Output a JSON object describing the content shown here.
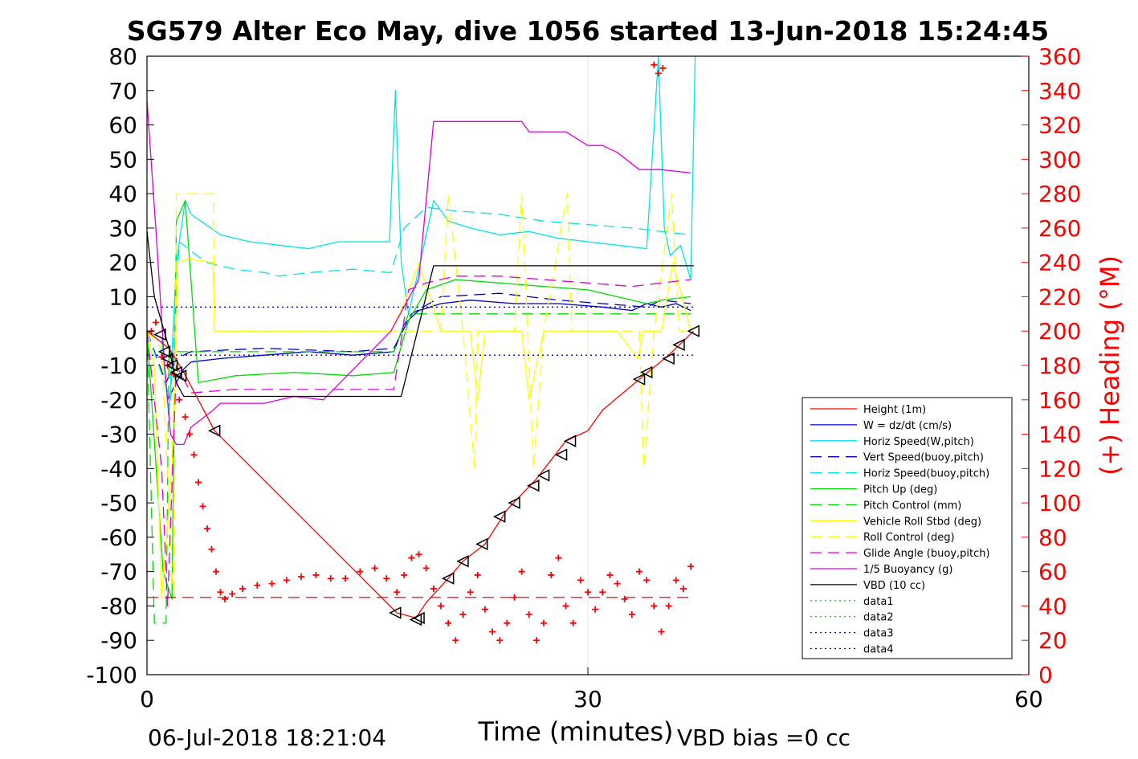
{
  "chart_data": {
    "type": "line",
    "title": "SG579 Alter Eco May, dive 1056 started 13-Jun-2018 15:24:45",
    "xlabel": "Time (minutes)",
    "ylabel_right": "(+) Heading (°M)",
    "xlim": [
      0,
      60
    ],
    "ylim": [
      -100,
      80
    ],
    "ylim_right": [
      0,
      360
    ],
    "xticks": [
      "0",
      "30",
      "60"
    ],
    "yticks": [
      "80",
      "70",
      "60",
      "50",
      "40",
      "30",
      "20",
      "10",
      "0",
      "-10",
      "-20",
      "-30",
      "-40",
      "-50",
      "-60",
      "-70",
      "-80",
      "-90",
      "-100"
    ],
    "yticks_right": [
      "360",
      "340",
      "320",
      "300",
      "280",
      "260",
      "240",
      "220",
      "200",
      "180",
      "160",
      "140",
      "120",
      "100",
      "80",
      "60",
      "40",
      "20",
      "0"
    ],
    "grid": "x-only",
    "legend_position": "bottom-right",
    "footer_left": "06-Jul-2018 18:21:04",
    "footer_right": "VBD bias =0 cc",
    "colors": {
      "red": "#ff0000",
      "blue": "#0000cc",
      "cyan": "#00e5e5",
      "green": "#00dd00",
      "yellow": "#ffff00",
      "magenta": "#dd00dd",
      "black": "#000000"
    },
    "series": [
      {
        "name": "Height (1m)",
        "color": "#ff0000",
        "style": "solid",
        "x": [
          0,
          1.5,
          2.5,
          4.6,
          17,
          18.3,
          19,
          20.5,
          21.5,
          23,
          24.5,
          26.5,
          28.5,
          30,
          31,
          33.5,
          35.5,
          37.2
        ],
        "y": [
          0,
          -5,
          -12,
          -29,
          -82,
          -83.5,
          -79,
          -72,
          -67,
          -62,
          -52,
          -43,
          -32,
          -29,
          -23,
          -14,
          -7,
          0
        ]
      },
      {
        "name": "W = dz/dt (cm/s)",
        "color": "#0000cc",
        "style": "solid",
        "x": [
          0,
          1.0,
          1.4,
          2.0,
          2.5,
          3,
          5,
          8,
          11,
          14,
          16.8,
          17.5,
          18.5,
          20,
          22,
          25,
          28,
          31,
          33,
          34,
          35,
          36,
          37
        ],
        "y": [
          0,
          -2,
          -20,
          -15,
          -11,
          -9,
          -8,
          -7,
          -6,
          -7,
          -6,
          2,
          6,
          8,
          9,
          8,
          8,
          7,
          6,
          8,
          7,
          8,
          6
        ]
      },
      {
        "name": "Horiz Speed(W,pitch)",
        "color": "#00e5e5",
        "style": "solid",
        "x": [
          0,
          1.0,
          1.5,
          2.0,
          2.6,
          3.0,
          4,
          5,
          7,
          9,
          11,
          13,
          15,
          16.5,
          16.9,
          17.3,
          17.8,
          18.6,
          19.5,
          20.5,
          22,
          24,
          26,
          28,
          30,
          32,
          34,
          34.8,
          35.2,
          35.6,
          36.3,
          37,
          37.3
        ],
        "y": [
          0,
          -2,
          -25,
          20,
          38,
          34,
          31,
          28,
          26,
          25,
          24,
          26,
          26,
          26,
          70,
          20,
          5,
          20,
          38,
          32,
          30,
          28,
          29,
          27,
          26,
          25,
          24,
          80,
          30,
          22,
          25,
          15,
          80
        ]
      },
      {
        "name": "Vert Speed(buoy,pitch)",
        "color": "#0000cc",
        "style": "dashed",
        "x": [
          0,
          1.3,
          2.0,
          3,
          8,
          14,
          16.8,
          18,
          20,
          24,
          28,
          31,
          34,
          35,
          37
        ],
        "y": [
          0,
          -15,
          -8,
          -6,
          -5,
          -6,
          -5,
          5,
          10,
          11,
          9,
          8,
          7,
          9,
          8
        ]
      },
      {
        "name": "Horiz Speed(buoy,pitch)",
        "color": "#00e5e5",
        "style": "dashed",
        "x": [
          0,
          1.6,
          2.2,
          4,
          6,
          8,
          9,
          11,
          14,
          16.6,
          17.5,
          19,
          21,
          24,
          27,
          30,
          33,
          35,
          37
        ],
        "y": [
          0,
          -20,
          26,
          20,
          18,
          17,
          16,
          17,
          18,
          17,
          30,
          36,
          35,
          34,
          32,
          31,
          30,
          29,
          28
        ]
      },
      {
        "name": "Pitch Up (deg)",
        "color": "#00dd00",
        "style": "solid",
        "x": [
          0,
          1.1,
          1.7,
          2.0,
          2.6,
          3.5,
          6,
          10,
          14,
          16.8,
          17.8,
          19,
          21,
          24,
          27,
          30,
          32,
          34,
          35,
          37
        ],
        "y": [
          0,
          -70,
          -78,
          32,
          38,
          -15,
          -13,
          -12,
          -13,
          -12,
          3,
          12,
          15,
          14,
          13,
          12,
          10,
          8,
          9,
          10
        ]
      },
      {
        "name": "Pitch Control (mm)",
        "color": "#00dd00",
        "style": "dashed",
        "x": [
          0,
          0.5,
          0.8,
          1.3,
          1.5,
          2.0,
          8,
          16.8,
          17.8,
          37
        ],
        "y": [
          0,
          -85,
          -85,
          -85,
          -6,
          -6,
          -6,
          -6,
          5,
          5
        ]
      },
      {
        "name": "Vehicle Roll Stbd (deg)",
        "color": "#ffff00",
        "style": "solid",
        "x": [
          0,
          0.5,
          1.0,
          1.7,
          2.1,
          2.8,
          4.5,
          4.6,
          10,
          16.6,
          17.5,
          18.5,
          20,
          22,
          22.5,
          23,
          24,
          25.5,
          26,
          27,
          28.5,
          29,
          30,
          32,
          33.4,
          33.8,
          34.3,
          35,
          35.8,
          37
        ],
        "y": [
          0,
          -10,
          -78,
          -40,
          20,
          21,
          20,
          0,
          0,
          0,
          8,
          20,
          0,
          0,
          -20,
          0,
          0,
          0,
          -20,
          0,
          0,
          0,
          0,
          0,
          -8,
          0,
          0,
          0,
          20,
          0
        ]
      },
      {
        "name": "Roll Control (deg)",
        "color": "#ffff00",
        "style": "dashed",
        "x": [
          0,
          1.0,
          1.8,
          2.0,
          4.5,
          4.6,
          16.6,
          17,
          20,
          20.5,
          21.5,
          22.3,
          22.5,
          23.5,
          25,
          25.5,
          26.3,
          27,
          28.6,
          28.9,
          29.1,
          33.5,
          33.8,
          34.5,
          35.7,
          36.2,
          37
        ],
        "y": [
          0,
          -5,
          -78,
          40,
          40,
          0,
          0,
          0,
          0,
          40,
          0,
          -40,
          0,
          0,
          0,
          40,
          -40,
          0,
          40,
          0,
          0,
          0,
          -40,
          0,
          40,
          0,
          0
        ]
      },
      {
        "name": "Glide Angle (buoy,pitch)",
        "color": "#dd00dd",
        "style": "dashed",
        "x": [
          0,
          1.0,
          1.4,
          2.0,
          3,
          6,
          10,
          14,
          16.8,
          17.8,
          19,
          21,
          24,
          27,
          30,
          33,
          35,
          37
        ],
        "y": [
          0,
          -40,
          -80,
          -10,
          -18,
          -17,
          -17,
          -17,
          -17,
          12,
          14,
          16,
          16,
          15,
          14,
          13,
          14,
          15
        ]
      },
      {
        "name": "1/5 Buoyancy (g)",
        "color": "#dd00dd",
        "style": "solid",
        "x": [
          0,
          0.6,
          1.2,
          1.6,
          2.0,
          2.5,
          3,
          4.5,
          5,
          8,
          10,
          12,
          16.6,
          18.5,
          19.5,
          25.5,
          26,
          28.5,
          30,
          31,
          32,
          33.5,
          35,
          37
        ],
        "y": [
          67,
          30,
          -10,
          -30,
          -33,
          -33,
          -28,
          -23,
          -21,
          -21,
          -19,
          -20,
          0,
          15,
          61,
          61,
          58,
          58,
          54,
          54,
          52,
          47,
          47,
          46
        ]
      },
      {
        "name": "VBD (10 cc)",
        "color": "#000000",
        "style": "solid",
        "x": [
          0,
          0.5,
          1.5,
          2.0,
          2.5,
          16.7,
          17.3,
          19.5,
          37.2
        ],
        "y": [
          29,
          10,
          -5,
          -15,
          -19,
          -19,
          -19,
          19,
          19
        ]
      },
      {
        "name": "data1",
        "color": "#00dd00",
        "style": "dotted",
        "x": [],
        "y": []
      },
      {
        "name": "data2",
        "color": "#00dd00",
        "style": "dotted",
        "x": [],
        "y": []
      },
      {
        "name": "data3",
        "color": "#0000cc",
        "style": "dotted",
        "x": [
          0,
          37.2
        ],
        "y": [
          7,
          7
        ]
      },
      {
        "name": "data4",
        "color": "#0000cc",
        "style": "dotted",
        "x": [
          0,
          37.2
        ],
        "y": [
          -7,
          -7
        ]
      }
    ],
    "reference_line": {
      "color": "#ff0000",
      "style": "dashed",
      "x": [
        0,
        37.2
      ],
      "y_right": 45
    },
    "heading_points": {
      "x": [
        0.3,
        0.6,
        1.0,
        1.4,
        1.8,
        2.2,
        2.6,
        2.9,
        3.2,
        3.5,
        3.8,
        4.1,
        4.4,
        4.7,
        5.0,
        5.3,
        5.8,
        6.5,
        7.5,
        8.5,
        9.5,
        10.5,
        11.5,
        12.5,
        13.5,
        14.5,
        15.5,
        16.3,
        17.0,
        17.5,
        18.0,
        18.5,
        19.0,
        19.5,
        20.0,
        20.5,
        21.0,
        21.5,
        22.0,
        22.5,
        23.0,
        23.5,
        24.0,
        24.5,
        25.0,
        25.5,
        26.0,
        26.5,
        27.0,
        27.5,
        28.0,
        28.5,
        29.0,
        29.5,
        30.0,
        30.5,
        31.0,
        31.5,
        32.0,
        32.5,
        33.0,
        33.5,
        34.0,
        34.5,
        35.0,
        35.5,
        36.0,
        36.5,
        37.0,
        34.5,
        34.8,
        35.1
      ],
      "y": [
        200,
        205,
        185,
        180,
        175,
        160,
        150,
        140,
        128,
        112,
        98,
        85,
        73,
        60,
        48,
        44,
        47,
        50,
        52,
        53,
        55,
        57,
        58,
        56,
        56,
        60,
        62,
        56,
        48,
        58,
        68,
        70,
        62,
        50,
        40,
        30,
        20,
        35,
        48,
        58,
        38,
        25,
        20,
        30,
        45,
        60,
        35,
        20,
        30,
        58,
        68,
        40,
        30,
        55,
        48,
        38,
        48,
        58,
        53,
        44,
        35,
        60,
        55,
        40,
        25,
        40,
        55,
        50,
        63,
        355,
        350,
        353
      ]
    },
    "markers": {
      "x": [
        0.9,
        1.2,
        1.4,
        1.7,
        2.0,
        2.3,
        4.6,
        16.9,
        18.3,
        18.5,
        20.5,
        21.5,
        22.8,
        24.0,
        25.0,
        26.3,
        27.0,
        28.2,
        28.8,
        33.5,
        34.0,
        35.5,
        36.2,
        37.2
      ],
      "y": [
        -1,
        -6,
        -8,
        -10,
        -12,
        -13,
        -29,
        -82,
        -84,
        -83.5,
        -72,
        -67,
        -62,
        -54,
        -50,
        -45,
        -42,
        -36,
        -32,
        -14,
        -12,
        -8,
        -4,
        0
      ]
    }
  },
  "legend": {
    "items": [
      {
        "label": "Height (1m)",
        "color": "#ff0000",
        "style": "solid"
      },
      {
        "label": "W = dz/dt (cm/s)",
        "color": "#0000cc",
        "style": "solid"
      },
      {
        "label": "Horiz Speed(W,pitch)",
        "color": "#00e5e5",
        "style": "solid"
      },
      {
        "label": "Vert Speed(buoy,pitch)",
        "color": "#0000cc",
        "style": "dashed"
      },
      {
        "label": "Horiz Speed(buoy,pitch)",
        "color": "#00e5e5",
        "style": "dashed"
      },
      {
        "label": "Pitch Up (deg)",
        "color": "#00dd00",
        "style": "solid"
      },
      {
        "label": "Pitch Control (mm)",
        "color": "#00dd00",
        "style": "dashed"
      },
      {
        "label": "Vehicle Roll Stbd (deg)",
        "color": "#ffff00",
        "style": "solid"
      },
      {
        "label": "Roll Control (deg)",
        "color": "#ffff00",
        "style": "dashed"
      },
      {
        "label": "Glide Angle (buoy,pitch)",
        "color": "#dd00dd",
        "style": "dashed"
      },
      {
        "label": "1/5 Buoyancy (g)",
        "color": "#dd00dd",
        "style": "solid"
      },
      {
        "label": "VBD (10 cc)",
        "color": "#000000",
        "style": "solid"
      },
      {
        "label": "data1",
        "color": "#00dd00",
        "style": "dotted"
      },
      {
        "label": "data2",
        "color": "#00dd00",
        "style": "dotted"
      },
      {
        "label": "data3",
        "color": "#0000cc",
        "style": "dotted"
      },
      {
        "label": "data4",
        "color": "#0000cc",
        "style": "dotted"
      }
    ]
  }
}
